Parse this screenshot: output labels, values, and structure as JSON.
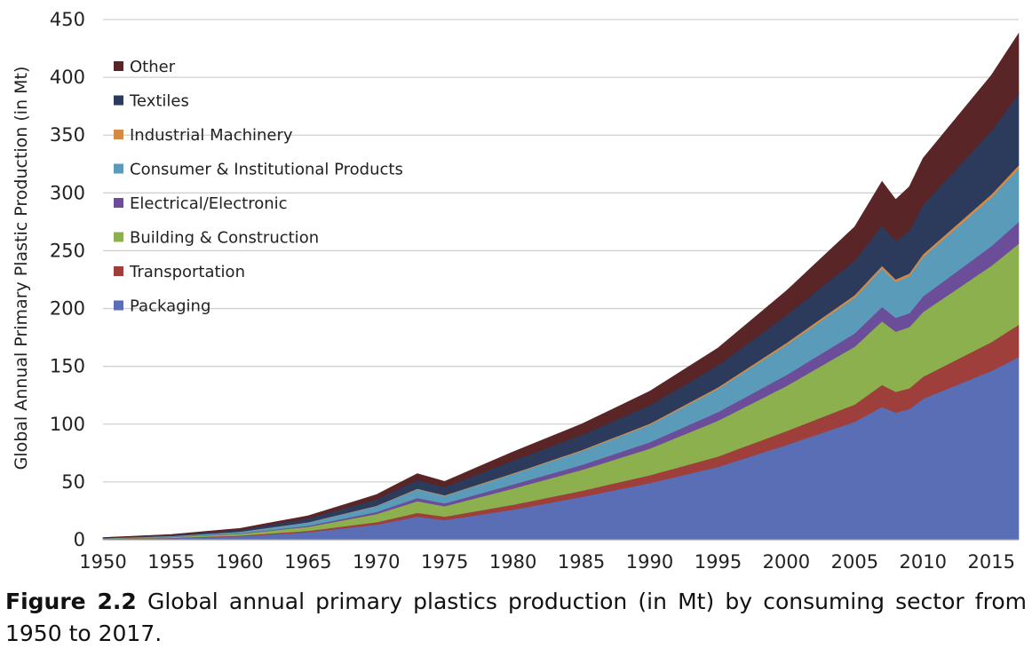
{
  "chart_data": {
    "type": "area",
    "stacked": true,
    "title": "",
    "xlabel": "",
    "ylabel": "Global Annual Primary Plastic Production (in Mt)",
    "xlim": [
      1950,
      2017
    ],
    "ylim": [
      0,
      450
    ],
    "yticks": [
      0,
      50,
      100,
      150,
      200,
      250,
      300,
      350,
      400,
      450
    ],
    "xticks": [
      1950,
      1955,
      1960,
      1965,
      1970,
      1975,
      1980,
      1985,
      1990,
      1995,
      2000,
      2005,
      2010,
      2015
    ],
    "grid": "horizontal",
    "legend_position": "top-left",
    "series": [
      {
        "name": "Packaging",
        "color": "#5a6eb6",
        "points": [
          [
            1950,
            0.7
          ],
          [
            1955,
            1.4
          ],
          [
            1960,
            3
          ],
          [
            1965,
            6.5
          ],
          [
            1970,
            13
          ],
          [
            1973,
            20
          ],
          [
            1975,
            17
          ],
          [
            1980,
            26
          ],
          [
            1985,
            37
          ],
          [
            1990,
            49
          ],
          [
            1995,
            63
          ],
          [
            2000,
            82
          ],
          [
            2005,
            102
          ],
          [
            2007,
            115
          ],
          [
            2008,
            110
          ],
          [
            2009,
            113
          ],
          [
            2010,
            122
          ],
          [
            2015,
            146
          ],
          [
            2017,
            158
          ]
        ]
      },
      {
        "name": "Transportation",
        "color": "#9e3f3c",
        "points": [
          [
            1950,
            0.1
          ],
          [
            1955,
            0.3
          ],
          [
            1960,
            0.6
          ],
          [
            1965,
            1.2
          ],
          [
            1970,
            2.2
          ],
          [
            1973,
            3.3
          ],
          [
            1975,
            3
          ],
          [
            1980,
            4.3
          ],
          [
            1985,
            5.3
          ],
          [
            1990,
            6.8
          ],
          [
            1995,
            9
          ],
          [
            2000,
            12
          ],
          [
            2005,
            15
          ],
          [
            2007,
            19
          ],
          [
            2008,
            18
          ],
          [
            2009,
            18
          ],
          [
            2010,
            19
          ],
          [
            2015,
            25
          ],
          [
            2017,
            28
          ]
        ]
      },
      {
        "name": "Building & Construction",
        "color": "#8cb04e",
        "points": [
          [
            1950,
            0.3
          ],
          [
            1955,
            0.7
          ],
          [
            1960,
            1.5
          ],
          [
            1965,
            3.5
          ],
          [
            1970,
            7
          ],
          [
            1973,
            10
          ],
          [
            1975,
            9
          ],
          [
            1980,
            14
          ],
          [
            1985,
            18
          ],
          [
            1990,
            23
          ],
          [
            1995,
            31
          ],
          [
            2000,
            39
          ],
          [
            2005,
            50
          ],
          [
            2007,
            55
          ],
          [
            2008,
            52
          ],
          [
            2009,
            53
          ],
          [
            2010,
            56
          ],
          [
            2015,
            66
          ],
          [
            2017,
            70
          ]
        ]
      },
      {
        "name": "Electrical/Electronic",
        "color": "#6b4d9a",
        "points": [
          [
            1950,
            0.1
          ],
          [
            1955,
            0.2
          ],
          [
            1960,
            0.4
          ],
          [
            1965,
            0.9
          ],
          [
            1970,
            1.8
          ],
          [
            1973,
            2.8
          ],
          [
            1975,
            2.5
          ],
          [
            1980,
            3.5
          ],
          [
            1985,
            4.3
          ],
          [
            1990,
            5.5
          ],
          [
            1995,
            7.5
          ],
          [
            2000,
            9.5
          ],
          [
            2005,
            11.5
          ],
          [
            2007,
            12.5
          ],
          [
            2008,
            12
          ],
          [
            2009,
            12
          ],
          [
            2010,
            13.5
          ],
          [
            2015,
            17
          ],
          [
            2017,
            19
          ]
        ]
      },
      {
        "name": "Consumer & Institutional Products",
        "color": "#5b9bba",
        "points": [
          [
            1950,
            0.2
          ],
          [
            1955,
            0.6
          ],
          [
            1960,
            1.3
          ],
          [
            1965,
            2.8
          ],
          [
            1970,
            5
          ],
          [
            1973,
            7.5
          ],
          [
            1975,
            6.5
          ],
          [
            1980,
            9
          ],
          [
            1985,
            12
          ],
          [
            1990,
            15
          ],
          [
            1995,
            20
          ],
          [
            2000,
            26
          ],
          [
            2005,
            31
          ],
          [
            2007,
            33
          ],
          [
            2008,
            31
          ],
          [
            2009,
            32
          ],
          [
            2010,
            34
          ],
          [
            2015,
            42
          ],
          [
            2017,
            46
          ]
        ]
      },
      {
        "name": "Industrial Machinery",
        "color": "#d28b45",
        "points": [
          [
            1950,
            0.02
          ],
          [
            1955,
            0.05
          ],
          [
            1960,
            0.1
          ],
          [
            1965,
            0.2
          ],
          [
            1970,
            0.4
          ],
          [
            1973,
            0.6
          ],
          [
            1975,
            0.5
          ],
          [
            1980,
            0.7
          ],
          [
            1985,
            0.9
          ],
          [
            1990,
            1.1
          ],
          [
            1995,
            1.4
          ],
          [
            2000,
            1.8
          ],
          [
            2005,
            2.2
          ],
          [
            2007,
            2.5
          ],
          [
            2008,
            2.3
          ],
          [
            2009,
            2.4
          ],
          [
            2010,
            2.5
          ],
          [
            2015,
            2.8
          ],
          [
            2017,
            3
          ]
        ]
      },
      {
        "name": "Textiles",
        "color": "#2c3a5c",
        "points": [
          [
            1950,
            0.3
          ],
          [
            1955,
            0.8
          ],
          [
            1960,
            1.7
          ],
          [
            1965,
            3.3
          ],
          [
            1970,
            5.6
          ],
          [
            1973,
            7.5
          ],
          [
            1975,
            7
          ],
          [
            1980,
            11
          ],
          [
            1985,
            13
          ],
          [
            1990,
            16
          ],
          [
            1995,
            19
          ],
          [
            2000,
            24
          ],
          [
            2005,
            30
          ],
          [
            2007,
            35
          ],
          [
            2008,
            33
          ],
          [
            2009,
            37
          ],
          [
            2010,
            43
          ],
          [
            2015,
            55
          ],
          [
            2017,
            62
          ]
        ]
      },
      {
        "name": "Other",
        "color": "#5a2526",
        "points": [
          [
            1950,
            0.2
          ],
          [
            1955,
            0.5
          ],
          [
            1960,
            1.2
          ],
          [
            1965,
            2.3
          ],
          [
            1970,
            4
          ],
          [
            1973,
            5.5
          ],
          [
            1975,
            5
          ],
          [
            1980,
            7.5
          ],
          [
            1985,
            9.5
          ],
          [
            1990,
            12
          ],
          [
            1995,
            15
          ],
          [
            2000,
            21
          ],
          [
            2005,
            29
          ],
          [
            2007,
            38
          ],
          [
            2008,
            36
          ],
          [
            2009,
            38
          ],
          [
            2010,
            40
          ],
          [
            2015,
            48
          ],
          [
            2017,
            52
          ]
        ]
      }
    ]
  },
  "caption": {
    "bold": "Figure 2.2",
    "text": " Global annual primary plastics production (in Mt) by consuming sector from 1950 to 2017."
  }
}
